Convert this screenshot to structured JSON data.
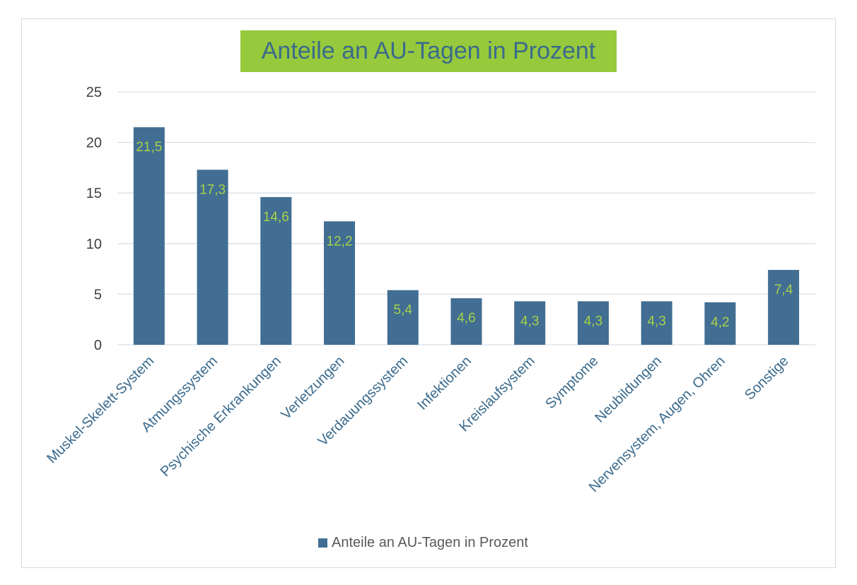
{
  "chart_data": {
    "type": "bar",
    "title": "Anteile an AU-Tagen in Prozent",
    "categories": [
      "Muskel-Skelett-System",
      "Atmungssystem",
      "Psychische Erkrankungen",
      "Verletzungen",
      "Verdauungssystem",
      "Infektionen",
      "Kreislaufsystem",
      "Symptome",
      "Neubildungen",
      "Nervensystem, Augen, Ohren",
      "Sonstige"
    ],
    "series": [
      {
        "name": "Anteile an AU-Tagen in Prozent",
        "values": [
          21.5,
          17.3,
          14.6,
          12.2,
          5.4,
          4.6,
          4.3,
          4.3,
          4.3,
          4.2,
          7.4
        ],
        "data_labels": [
          "21,5",
          "17,3",
          "14,6",
          "12,2",
          "5,4",
          "4,6",
          "4,3",
          "4,3",
          "4,3",
          "4,2",
          "7,4"
        ]
      }
    ],
    "ylim": [
      0,
      25
    ],
    "yticks": [
      "0",
      "5",
      "10",
      "15",
      "20",
      "25"
    ],
    "xlabel": "",
    "ylabel": "",
    "grid": true,
    "legend_position": "bottom"
  },
  "colors": {
    "bar": "#416e92",
    "data_label": "#a8d14a",
    "title_bg": "#97c93c",
    "title_text": "#3a6a8c",
    "category_label": "#3a6a8c",
    "tick_label": "#404040",
    "gridline": "#d9dfe6"
  }
}
